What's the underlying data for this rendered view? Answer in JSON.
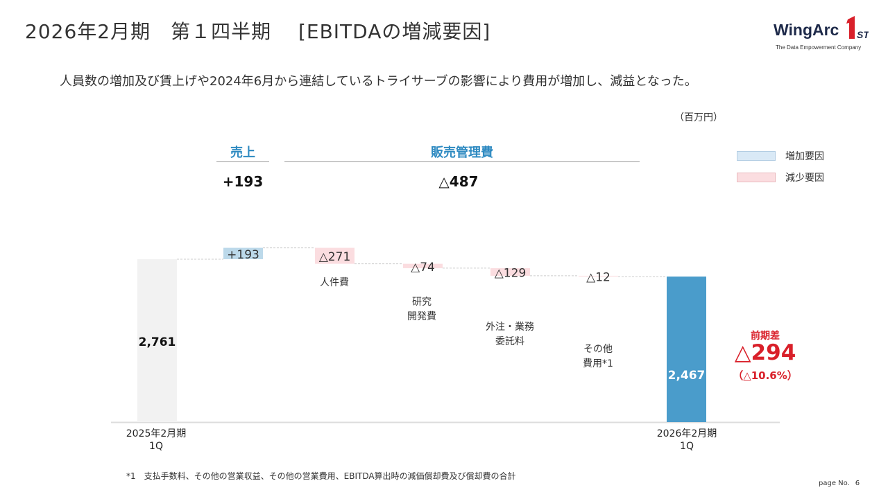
{
  "header": {
    "title": "2026年2月期　第１四半期　 [EBITDAの増減要因]",
    "subtitle": "人員数の増加及び賃上げや2024年6月から連結しているトライサーブの影響により費用が増加し、減益となった。"
  },
  "logo": {
    "wordmark": "WingArc",
    "mark_number": "1",
    "mark_suffix": "ST",
    "tagline": "The Data Empowerment Company"
  },
  "unit": "（百万円）",
  "legend": [
    {
      "label": "増加要因",
      "color": "#d9e9f6"
    },
    {
      "label": "減少要因",
      "color": "#fbdde0"
    }
  ],
  "groups": [
    {
      "title": "売上",
      "value": "+193"
    },
    {
      "title": "販売管理費",
      "value": "△487"
    }
  ],
  "chart_data": {
    "type": "bar",
    "subtype": "waterfall",
    "unit": "百万円",
    "ylim": [
      0,
      3000
    ],
    "grid": false,
    "legend_position": "top-right",
    "colors": {
      "base_start": "#f2f2f2",
      "base_end": "#4a9ccb",
      "increase": "#bcd9ea",
      "decrease": "#fbdde0"
    },
    "steps": [
      {
        "name": "2025年2月期\n1Q",
        "type": "total",
        "value": 2761,
        "label": "2,761"
      },
      {
        "name": "",
        "type": "increase",
        "value": 193,
        "label": "+193"
      },
      {
        "name": "人件費",
        "type": "decrease",
        "value": -271,
        "label": "△271"
      },
      {
        "name": "研究\n開発費",
        "type": "decrease",
        "value": -74,
        "label": "△74"
      },
      {
        "name": "外注・業務\n委託料",
        "type": "decrease",
        "value": -129,
        "label": "△129"
      },
      {
        "name": "その他\n費用*1",
        "type": "decrease",
        "value": -12,
        "label": "△12"
      },
      {
        "name": "2026年2月期\n1Q",
        "type": "total",
        "value": 2467,
        "label": "2,467"
      }
    ],
    "difference": {
      "heading": "前期差",
      "value": "△294",
      "percent": "（△10.6%）"
    }
  },
  "footnote": "*1　支払手数料、その他の営業収益、その他の営業費用、EBITDA算出時の減価償却費及び償却費の合計",
  "page": {
    "label": "page No.",
    "number": "6"
  }
}
